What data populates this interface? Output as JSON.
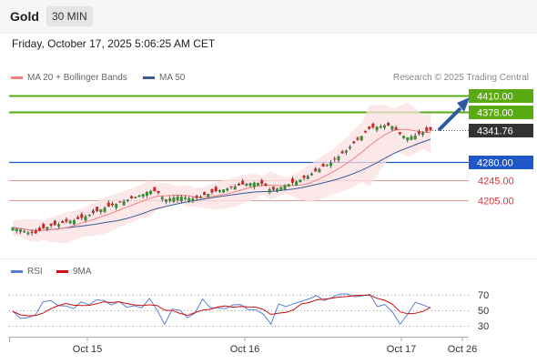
{
  "header": {
    "title": "Gold",
    "timeframe": "30 MIN"
  },
  "timestamp": "Friday, October 17, 2025 5:06:25 AM CET",
  "legend": {
    "items": [
      {
        "label": "MA 20 + Bollinger Bands",
        "color": "#f08080"
      },
      {
        "label": "MA 50",
        "color": "#3a5a96"
      }
    ],
    "credit": "Research © 2025 Trading Central"
  },
  "rsi_legend": {
    "items": [
      {
        "label": "RSI",
        "color": "#5b7fcf"
      },
      {
        "label": "9MA",
        "color": "#d01010"
      }
    ]
  },
  "colors": {
    "resistance": "#5aaa14",
    "pivot": "#1f56c8",
    "support": "#d93636",
    "last_price": "#333333",
    "arrow": "#2a5c9c",
    "candle_up": "#3a8a3a",
    "candle_down": "#cc2a2a"
  },
  "chart_data": [
    {
      "type": "candlestick",
      "x_labels": [
        "Oct 15",
        "Oct 16",
        "Oct 17",
        "Oct 26"
      ],
      "levels": [
        {
          "value": "4410.00",
          "kind": "resistance"
        },
        {
          "value": "4378.00",
          "kind": "resistance"
        },
        {
          "value": "4341.76",
          "kind": "last"
        },
        {
          "value": "4280.00",
          "kind": "pivot"
        },
        {
          "value": "4245.00",
          "kind": "support"
        },
        {
          "value": "4205.00",
          "kind": "support"
        }
      ],
      "close_path": [
        4152,
        4148,
        4142,
        4140,
        4150,
        4155,
        4158,
        4163,
        4166,
        4170,
        4176,
        4183,
        4190,
        4195,
        4200,
        4205,
        4211,
        4216,
        4224,
        4222,
        4206,
        4210,
        4213,
        4209,
        4208,
        4214,
        4219,
        4224,
        4227,
        4231,
        4235,
        4238,
        4240,
        4237,
        4224,
        4229,
        4235,
        4240,
        4246,
        4254,
        4263,
        4272,
        4280,
        4292,
        4304,
        4318,
        4332,
        4346,
        4349,
        4352,
        4350,
        4334,
        4328,
        4332,
        4338,
        4342
      ]
    },
    {
      "type": "line",
      "title": "RSI",
      "y_ticks": [
        70,
        50,
        30
      ]
    }
  ]
}
